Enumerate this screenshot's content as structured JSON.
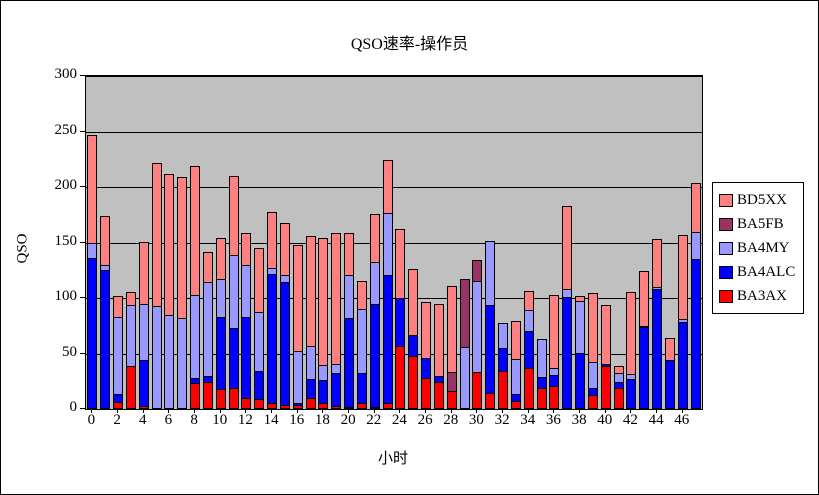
{
  "chart": {
    "title": "QSO速率-操作员",
    "y_axis_title": "QSO",
    "x_axis_title": "小时"
  },
  "chart_data": {
    "type": "bar",
    "stacked": true,
    "title": "QSO速率-操作员",
    "xlabel": "小时",
    "ylabel": "QSO",
    "ylim": [
      0,
      300
    ],
    "ytick_step": 50,
    "ytick_labels": [
      "0",
      "50",
      "100",
      "150",
      "200",
      "250",
      "300"
    ],
    "xtick_labels": [
      "0",
      "2",
      "4",
      "6",
      "8",
      "10",
      "12",
      "14",
      "16",
      "18",
      "20",
      "22",
      "24",
      "26",
      "28",
      "30",
      "32",
      "34",
      "36",
      "38",
      "40",
      "42",
      "44",
      "46"
    ],
    "grid": true,
    "plot_background": "#C0C0C0",
    "legend_position": "right",
    "legend_order_top_to_bottom": [
      "BD5XX",
      "BA5FB",
      "BA4MY",
      "BA4ALC",
      "BA3AX"
    ],
    "categories": [
      0,
      1,
      2,
      3,
      4,
      5,
      6,
      7,
      8,
      9,
      10,
      11,
      12,
      13,
      14,
      15,
      16,
      17,
      18,
      19,
      20,
      21,
      22,
      23,
      24,
      25,
      26,
      27,
      28,
      29,
      30,
      31,
      32,
      33,
      34,
      35,
      36,
      37,
      38,
      39,
      40,
      41,
      42,
      43,
      44,
      45,
      46,
      47
    ],
    "series": [
      {
        "name": "BA3AX",
        "color": "#FF0000",
        "values": [
          0,
          0,
          6,
          39,
          3,
          0,
          0,
          0,
          23,
          24,
          18,
          19,
          10,
          9,
          5,
          4,
          4,
          10,
          5,
          3,
          2,
          5,
          2,
          5,
          57,
          48,
          28,
          24,
          16,
          0,
          33,
          14,
          34,
          7,
          37,
          19,
          21,
          0,
          0,
          13,
          39,
          19,
          0,
          0,
          0,
          0,
          0,
          0
        ]
      },
      {
        "name": "BA4ALC",
        "color": "#0000FF",
        "values": [
          136,
          125,
          8,
          0,
          42,
          0,
          0,
          0,
          5,
          6,
          66,
          55,
          74,
          26,
          117,
          112,
          3,
          18,
          22,
          31,
          81,
          28,
          94,
          116,
          44,
          20,
          19,
          6,
          0,
          0,
          0,
          80,
          22,
          7,
          34,
          11,
          11,
          101,
          50,
          7,
          3,
          6,
          27,
          74,
          108,
          44,
          78,
          135
        ]
      },
      {
        "name": "BA4MY",
        "color": "#9999FF",
        "values": [
          14,
          5,
          70,
          56,
          51,
          93,
          85,
          82,
          76,
          86,
          35,
          67,
          48,
          54,
          6,
          7,
          48,
          31,
          14,
          9,
          40,
          59,
          39,
          57,
          0,
          0,
          0,
          0,
          0,
          56,
          83,
          59,
          23,
          32,
          20,
          35,
          7,
          8,
          48,
          24,
          0,
          9,
          5,
          2,
          3,
          0,
          4,
          25
        ]
      },
      {
        "name": "BA5FB",
        "color": "#993366",
        "values": [
          0,
          0,
          0,
          0,
          0,
          0,
          0,
          0,
          0,
          0,
          0,
          0,
          0,
          0,
          0,
          0,
          0,
          0,
          0,
          0,
          0,
          0,
          0,
          0,
          0,
          0,
          0,
          0,
          18,
          62,
          20,
          0,
          0,
          0,
          0,
          0,
          0,
          0,
          0,
          0,
          0,
          0,
          0,
          0,
          0,
          0,
          0,
          0
        ]
      },
      {
        "name": "BD5XX",
        "color": "#FF8080",
        "values": [
          98,
          45,
          20,
          13,
          57,
          130,
          128,
          128,
          117,
          28,
          38,
          72,
          30,
          59,
          51,
          48,
          96,
          100,
          115,
          119,
          39,
          26,
          44,
          49,
          63,
          60,
          51,
          66,
          78,
          0,
          0,
          0,
          0,
          35,
          18,
          0,
          67,
          76,
          5,
          63,
          54,
          7,
          75,
          50,
          44,
          21,
          77,
          45
        ]
      }
    ]
  }
}
